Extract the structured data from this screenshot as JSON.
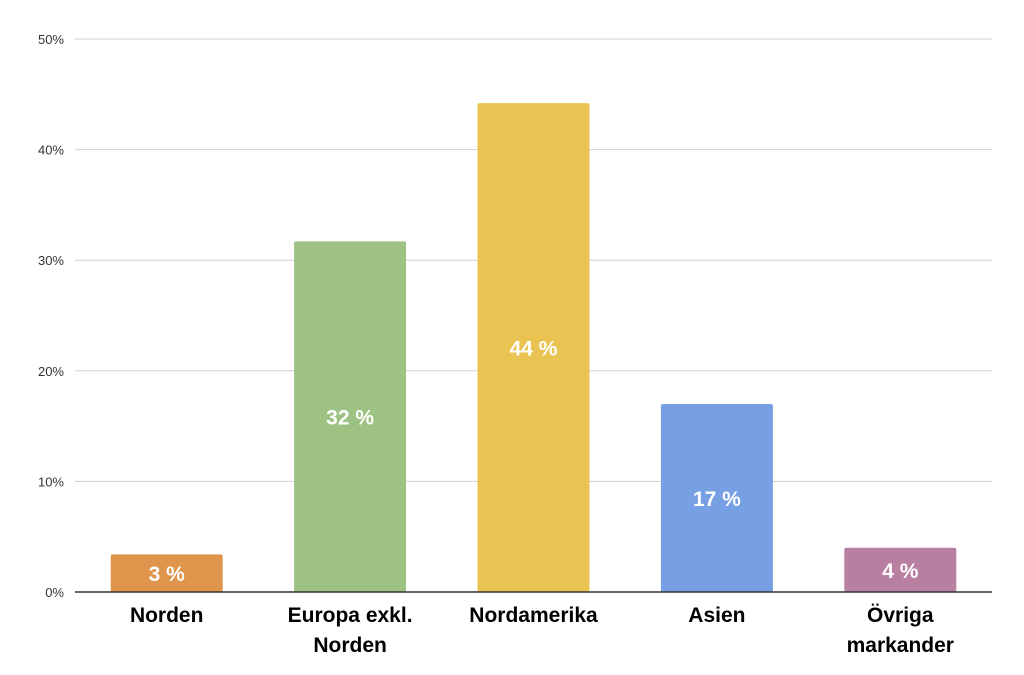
{
  "chart_data": {
    "type": "bar",
    "categories": [
      "Norden",
      "Europa exkl. Norden",
      "Nordamerika",
      "Asien",
      "Övriga markander"
    ],
    "category_lines": [
      [
        "Norden"
      ],
      [
        "Europa exkl.",
        "Norden"
      ],
      [
        "Nordamerika"
      ],
      [
        "Asien"
      ],
      [
        "Övriga",
        "markander"
      ]
    ],
    "values": [
      3.4,
      31.7,
      44.2,
      17.0,
      4.0
    ],
    "data_labels": [
      "3 %",
      "32 %",
      "44 %",
      "17 %",
      "4 %"
    ],
    "colors": [
      "#e0954c",
      "#9dc284",
      "#eac452",
      "#76a0e3",
      "#b97fa0"
    ],
    "yticks": [
      "0%",
      "10%",
      "20%",
      "30%",
      "40%",
      "50%"
    ],
    "ylim": [
      0,
      50
    ],
    "grid": true,
    "legend": "none"
  }
}
